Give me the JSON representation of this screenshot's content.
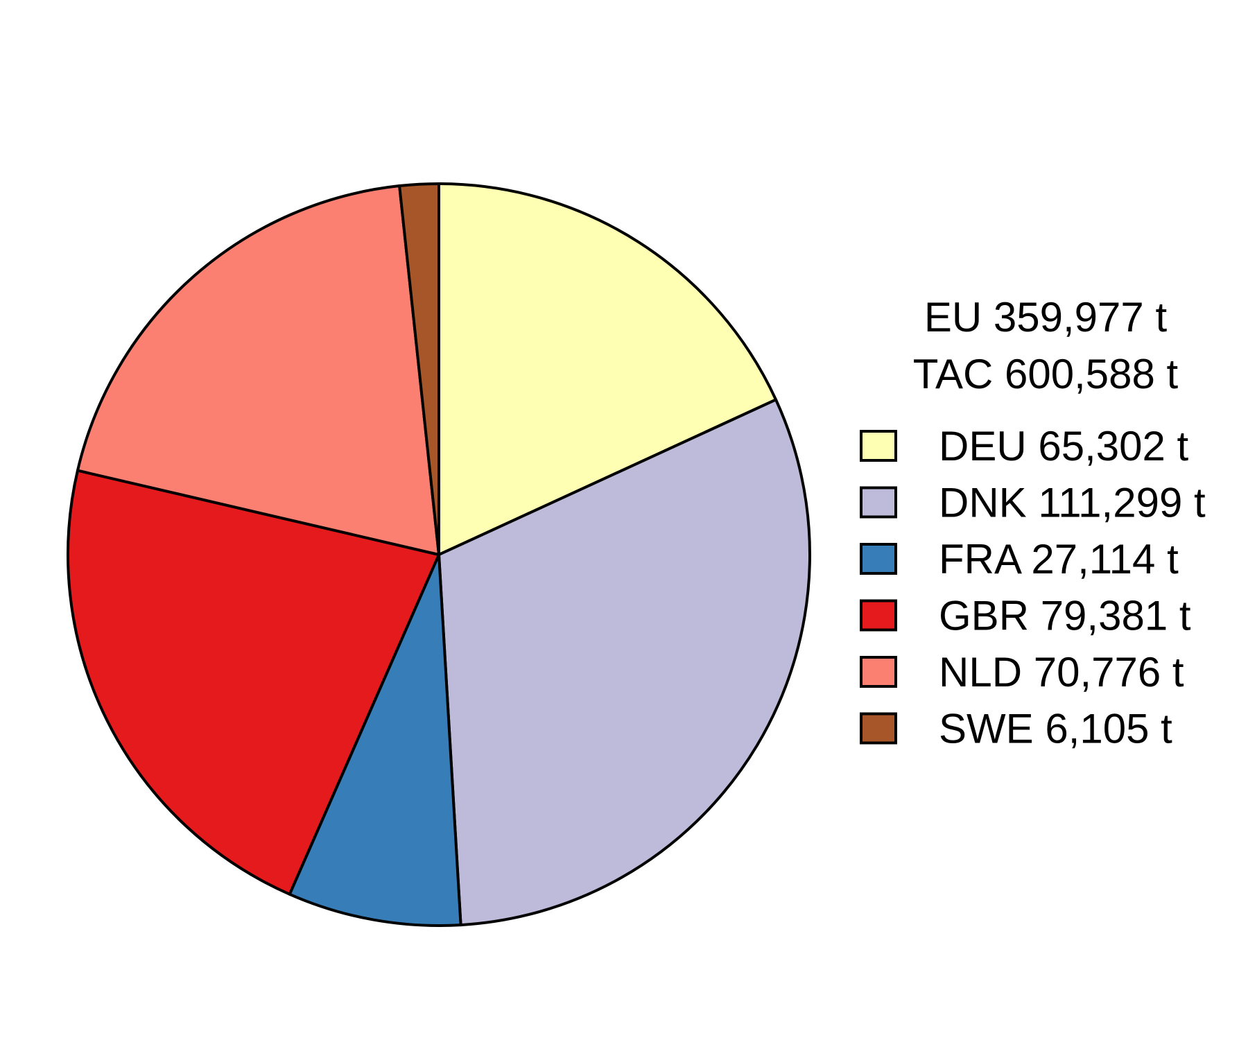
{
  "chart_data": {
    "type": "pie",
    "header_lines": [
      "EU 359,977 t",
      "TAC 600,588 t"
    ],
    "slices": [
      {
        "label": "DEU 65,302 t",
        "value": 65302,
        "color": "#FFFFB3"
      },
      {
        "label": "DNK 111,299 t",
        "value": 111299,
        "color": "#BEBADA"
      },
      {
        "label": "FRA 27,114 t",
        "value": 27114,
        "color": "#377EB8"
      },
      {
        "label": "GBR 79,381 t",
        "value": 79381,
        "color": "#E41A1C"
      },
      {
        "label": "NLD 70,776 t",
        "value": 70776,
        "color": "#FB8072"
      },
      {
        "label": "SWE 6,105 t",
        "value": 6105,
        "color": "#A65628"
      }
    ],
    "start": "12 o'clock",
    "direction": "clockwise",
    "legend_position": "right"
  }
}
